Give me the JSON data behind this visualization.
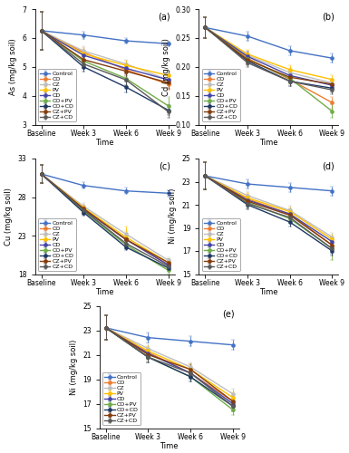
{
  "time_labels": [
    "Baseline",
    "Week 3",
    "Week 6",
    "Week 9"
  ],
  "series_names": [
    "Control",
    "CO",
    "CZ",
    "PV",
    "CD",
    "CO+PV",
    "CO+CD",
    "CZ+PV",
    "CZ+CD"
  ],
  "colors": [
    "#4472C4",
    "#ED7D31",
    "#BEBEBE",
    "#FFC000",
    "#4444AA",
    "#70AD47",
    "#1F3864",
    "#843C0C",
    "#595959"
  ],
  "As": {
    "ylabel": "As (mg/kg soil)",
    "ylim": [
      3,
      7
    ],
    "yticks": [
      3,
      4,
      5,
      6,
      7
    ],
    "data": [
      [
        6.25,
        6.1,
        5.9,
        5.8
      ],
      [
        6.25,
        5.5,
        4.9,
        4.4
      ],
      [
        6.25,
        5.55,
        5.1,
        4.55
      ],
      [
        6.25,
        5.45,
        5.05,
        4.7
      ],
      [
        6.25,
        5.4,
        4.95,
        4.55
      ],
      [
        6.25,
        5.2,
        4.6,
        3.65
      ],
      [
        6.25,
        5.0,
        4.3,
        3.5
      ],
      [
        6.25,
        5.25,
        4.85,
        4.45
      ],
      [
        6.25,
        5.1,
        4.55,
        3.45
      ]
    ],
    "errors": [
      [
        0.65,
        0.12,
        0.1,
        0.08
      ],
      [
        0.65,
        0.15,
        0.18,
        0.2
      ],
      [
        0.65,
        0.15,
        0.15,
        0.18
      ],
      [
        0.65,
        0.15,
        0.15,
        0.15
      ],
      [
        0.65,
        0.15,
        0.18,
        0.18
      ],
      [
        0.65,
        0.18,
        0.22,
        0.3
      ],
      [
        0.65,
        0.15,
        0.18,
        0.18
      ],
      [
        0.65,
        0.15,
        0.18,
        0.22
      ],
      [
        0.65,
        0.15,
        0.18,
        0.22
      ]
    ]
  },
  "Cd": {
    "ylabel": "Cd (mg/kg soil)",
    "ylim": [
      0.1,
      0.3
    ],
    "yticks": [
      0.1,
      0.15,
      0.2,
      0.25,
      0.3
    ],
    "data": [
      [
        0.268,
        0.253,
        0.228,
        0.215
      ],
      [
        0.268,
        0.215,
        0.178,
        0.138
      ],
      [
        0.268,
        0.22,
        0.19,
        0.172
      ],
      [
        0.268,
        0.222,
        0.195,
        0.178
      ],
      [
        0.268,
        0.218,
        0.185,
        0.168
      ],
      [
        0.268,
        0.213,
        0.18,
        0.123
      ],
      [
        0.268,
        0.21,
        0.175,
        0.163
      ],
      [
        0.268,
        0.212,
        0.182,
        0.17
      ],
      [
        0.268,
        0.207,
        0.175,
        0.16
      ]
    ],
    "errors": [
      [
        0.018,
        0.008,
        0.008,
        0.008
      ],
      [
        0.018,
        0.008,
        0.008,
        0.01
      ],
      [
        0.018,
        0.008,
        0.008,
        0.008
      ],
      [
        0.018,
        0.008,
        0.008,
        0.008
      ],
      [
        0.018,
        0.008,
        0.008,
        0.008
      ],
      [
        0.018,
        0.008,
        0.008,
        0.012
      ],
      [
        0.018,
        0.008,
        0.008,
        0.008
      ],
      [
        0.018,
        0.008,
        0.008,
        0.008
      ],
      [
        0.018,
        0.008,
        0.008,
        0.008
      ]
    ]
  },
  "Cu": {
    "ylabel": "Cu (mg/kg soil)",
    "ylim": [
      18,
      33
    ],
    "yticks": [
      18,
      23,
      28,
      33
    ],
    "data": [
      [
        31.0,
        29.5,
        28.8,
        28.5
      ],
      [
        31.0,
        26.5,
        22.5,
        19.2
      ],
      [
        31.0,
        26.8,
        23.2,
        19.8
      ],
      [
        31.0,
        26.6,
        22.8,
        19.5
      ],
      [
        31.0,
        26.4,
        22.5,
        19.2
      ],
      [
        31.0,
        26.2,
        21.8,
        18.5
      ],
      [
        31.0,
        26.0,
        21.5,
        18.8
      ],
      [
        31.0,
        26.5,
        22.5,
        19.5
      ],
      [
        31.0,
        26.3,
        22.0,
        19.0
      ]
    ],
    "errors": [
      [
        1.2,
        0.4,
        0.4,
        0.4
      ],
      [
        1.2,
        0.4,
        0.4,
        0.4
      ],
      [
        1.2,
        0.4,
        0.4,
        0.4
      ],
      [
        1.2,
        0.4,
        1.4,
        0.4
      ],
      [
        1.2,
        0.4,
        0.4,
        0.4
      ],
      [
        1.2,
        0.4,
        0.4,
        0.4
      ],
      [
        1.2,
        0.4,
        0.4,
        0.4
      ],
      [
        1.2,
        0.4,
        0.4,
        0.4
      ],
      [
        1.2,
        0.4,
        0.4,
        0.4
      ]
    ]
  },
  "Ni": {
    "ylabel": "Ni (mg/kg soil)",
    "ylim": [
      15,
      25
    ],
    "yticks": [
      15,
      17,
      19,
      21,
      23,
      25
    ],
    "data": [
      [
        23.5,
        22.8,
        22.5,
        22.2
      ],
      [
        23.5,
        21.5,
        20.2,
        17.5
      ],
      [
        23.5,
        21.8,
        20.5,
        18.2
      ],
      [
        23.5,
        21.6,
        20.4,
        18.0
      ],
      [
        23.5,
        21.4,
        20.2,
        17.8
      ],
      [
        23.5,
        21.2,
        19.8,
        17.2
      ],
      [
        23.5,
        21.0,
        19.5,
        17.0
      ],
      [
        23.5,
        21.3,
        20.1,
        17.5
      ],
      [
        23.5,
        21.1,
        19.9,
        17.2
      ]
    ],
    "errors": [
      [
        1.2,
        0.4,
        0.4,
        0.4
      ],
      [
        1.2,
        0.4,
        0.4,
        0.4
      ],
      [
        1.2,
        0.4,
        0.4,
        0.4
      ],
      [
        1.2,
        0.4,
        0.4,
        0.4
      ],
      [
        1.2,
        0.4,
        0.4,
        0.4
      ],
      [
        1.2,
        0.4,
        0.4,
        1.0
      ],
      [
        1.2,
        0.4,
        0.4,
        0.4
      ],
      [
        1.2,
        0.4,
        0.4,
        0.4
      ],
      [
        1.2,
        0.4,
        0.4,
        0.4
      ]
    ]
  },
  "Pb": {
    "ylabel": "Ni (mg/kg soil)",
    "ylim": [
      15,
      25
    ],
    "yticks": [
      15,
      17,
      19,
      21,
      23,
      25
    ],
    "data": [
      [
        23.2,
        22.4,
        22.1,
        21.8
      ],
      [
        23.2,
        21.2,
        19.5,
        17.2
      ],
      [
        23.2,
        21.5,
        20.0,
        17.8
      ],
      [
        23.2,
        21.3,
        19.8,
        17.5
      ],
      [
        23.2,
        21.1,
        19.5,
        17.0
      ],
      [
        23.2,
        20.8,
        19.2,
        16.5
      ],
      [
        23.2,
        20.8,
        19.2,
        16.8
      ],
      [
        23.2,
        21.0,
        19.8,
        17.2
      ],
      [
        23.2,
        20.8,
        19.5,
        16.8
      ]
    ],
    "errors": [
      [
        1.0,
        0.4,
        0.4,
        0.4
      ],
      [
        1.0,
        0.4,
        0.4,
        0.4
      ],
      [
        1.0,
        0.4,
        0.4,
        0.4
      ],
      [
        1.0,
        0.4,
        0.4,
        0.4
      ],
      [
        1.0,
        0.4,
        0.4,
        0.4
      ],
      [
        1.0,
        0.4,
        0.4,
        0.4
      ],
      [
        1.0,
        0.4,
        0.4,
        0.4
      ],
      [
        1.0,
        0.4,
        0.4,
        0.4
      ],
      [
        1.0,
        0.4,
        0.4,
        0.4
      ]
    ]
  },
  "panel_labels": [
    "(a)",
    "(b)",
    "(c)",
    "(d)",
    "(e)"
  ],
  "xlabel": "Time",
  "linewidth": 1.0,
  "markersize": 3,
  "fontsize": 6,
  "tick_fontsize": 5.5,
  "legend_fontsize": 4.5
}
